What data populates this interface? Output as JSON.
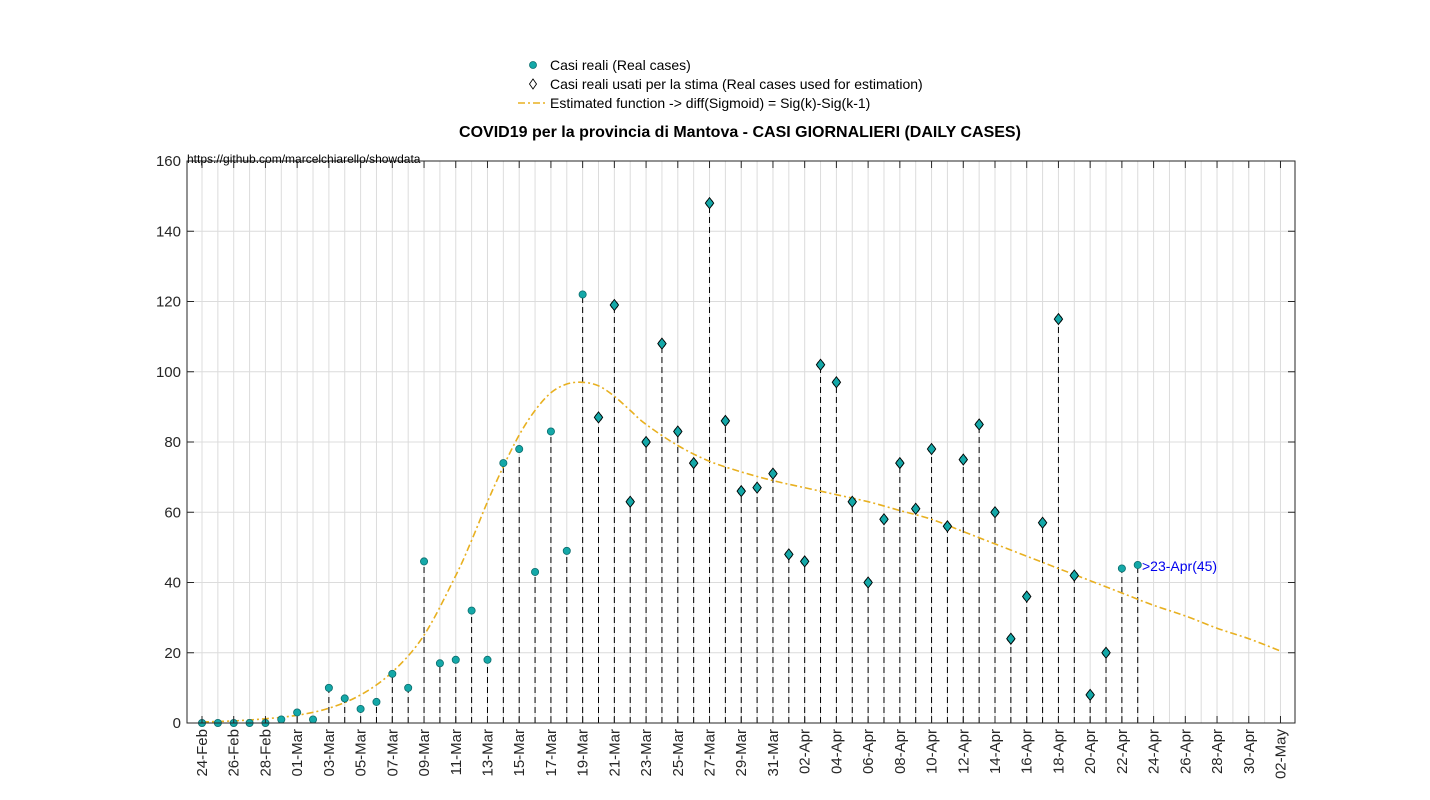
{
  "chart_data": {
    "type": "scatter",
    "title": "COVID19 per la provincia di Mantova - CASI GIORNALIERI (DAILY CASES)",
    "annotation_url": "https://github.com/marcelchiarello/showdata",
    "xlabel": "",
    "ylabel": "",
    "ylim": [
      0,
      160
    ],
    "yticks": [
      0,
      20,
      40,
      60,
      80,
      100,
      120,
      140,
      160
    ],
    "grid": true,
    "legend_position": "top",
    "x_tick_labels": [
      "24-Feb",
      "26-Feb",
      "28-Feb",
      "01-Mar",
      "03-Mar",
      "05-Mar",
      "07-Mar",
      "09-Mar",
      "11-Mar",
      "13-Mar",
      "15-Mar",
      "17-Mar",
      "19-Mar",
      "21-Mar",
      "23-Mar",
      "25-Mar",
      "27-Mar",
      "29-Mar",
      "31-Mar",
      "02-Apr",
      "04-Apr",
      "06-Apr",
      "08-Apr",
      "10-Apr",
      "12-Apr",
      "14-Apr",
      "16-Apr",
      "18-Apr",
      "20-Apr",
      "22-Apr",
      "24-Apr",
      "26-Apr",
      "28-Apr",
      "30-Apr",
      "02-May"
    ],
    "series": [
      {
        "name": "Casi reali (Real cases)",
        "color": "#14a8a8",
        "x": [
          "24-Feb",
          "25-Feb",
          "26-Feb",
          "27-Feb",
          "28-Feb",
          "29-Feb",
          "01-Mar",
          "02-Mar",
          "03-Mar",
          "04-Mar",
          "05-Mar",
          "06-Mar",
          "07-Mar",
          "08-Mar",
          "09-Mar",
          "10-Mar",
          "11-Mar",
          "12-Mar",
          "13-Mar",
          "14-Mar",
          "15-Mar",
          "16-Mar",
          "17-Mar",
          "18-Mar",
          "19-Mar",
          "20-Mar",
          "21-Mar",
          "22-Mar",
          "23-Mar",
          "24-Mar",
          "25-Mar",
          "26-Mar",
          "27-Mar",
          "28-Mar",
          "29-Mar",
          "30-Mar",
          "31-Mar",
          "01-Apr",
          "02-Apr",
          "03-Apr",
          "04-Apr",
          "05-Apr",
          "06-Apr",
          "07-Apr",
          "08-Apr",
          "09-Apr",
          "10-Apr",
          "11-Apr",
          "12-Apr",
          "13-Apr",
          "14-Apr",
          "15-Apr",
          "16-Apr",
          "17-Apr",
          "18-Apr",
          "19-Apr",
          "20-Apr",
          "21-Apr",
          "22-Apr",
          "23-Apr"
        ],
        "values": [
          0,
          0,
          0,
          0,
          0,
          1,
          3,
          1,
          10,
          7,
          4,
          6,
          14,
          10,
          46,
          17,
          18,
          32,
          18,
          74,
          78,
          43,
          83,
          49,
          122,
          87,
          119,
          63,
          80,
          108,
          83,
          74,
          148,
          86,
          66,
          67,
          71,
          48,
          46,
          102,
          97,
          63,
          40,
          58,
          74,
          61,
          78,
          56,
          75,
          85,
          60,
          24,
          36,
          57,
          115,
          42,
          8,
          20,
          44,
          45
        ]
      },
      {
        "name": "Casi reali usati per la stima (Real cases used for estimation)",
        "color": "#000000",
        "x": [
          "19-Mar",
          "20-Mar",
          "21-Mar",
          "22-Mar",
          "23-Mar",
          "24-Mar",
          "25-Mar",
          "26-Mar",
          "27-Mar",
          "28-Mar",
          "29-Mar",
          "30-Mar",
          "31-Mar",
          "01-Apr",
          "02-Apr",
          "03-Apr",
          "04-Apr",
          "05-Apr",
          "06-Apr",
          "07-Apr",
          "08-Apr",
          "09-Apr",
          "10-Apr",
          "11-Apr",
          "12-Apr",
          "13-Apr",
          "14-Apr",
          "15-Apr",
          "16-Apr",
          "17-Apr",
          "18-Apr",
          "19-Apr",
          "20-Apr",
          "21-Apr"
        ],
        "values": [
          null,
          87,
          119,
          63,
          80,
          108,
          83,
          74,
          148,
          86,
          66,
          67,
          71,
          48,
          46,
          102,
          97,
          63,
          40,
          58,
          74,
          61,
          78,
          56,
          75,
          85,
          60,
          24,
          36,
          57,
          115,
          42,
          8,
          20
        ]
      },
      {
        "name": "Estimated function -> diff(Sigmoid) = Sig(k)-Sig(k-1)",
        "color": "#e8b020",
        "x_day_index": [
          0,
          2,
          4,
          6,
          8,
          10,
          12,
          14,
          16,
          17,
          18,
          19,
          20,
          21,
          22,
          23,
          24,
          25,
          26,
          27,
          28,
          30,
          32,
          34,
          36,
          38,
          40,
          42,
          44,
          46,
          48,
          50,
          52,
          54,
          56,
          58,
          60,
          62,
          64,
          66,
          68
        ],
        "values": [
          0.3,
          0.6,
          1.2,
          2.2,
          4.2,
          8,
          14.5,
          25,
          42,
          52,
          63,
          73,
          82,
          89,
          94,
          96.5,
          97,
          96,
          93,
          89,
          85,
          79,
          74.5,
          71.5,
          69,
          67,
          65,
          63,
          60.5,
          58,
          54.5,
          51,
          47.5,
          44,
          40.5,
          37,
          33.5,
          30.5,
          27,
          24,
          20.5
        ]
      }
    ],
    "point_label": ">23-Apr(45)"
  }
}
